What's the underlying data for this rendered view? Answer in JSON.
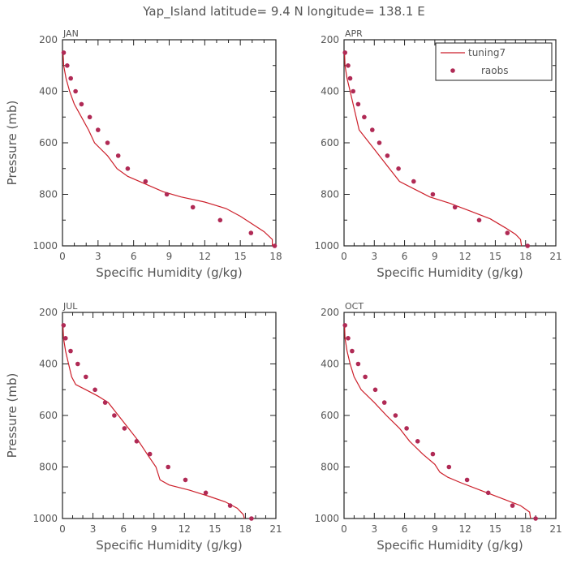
{
  "figure": {
    "title": "Yap_Island  latitude= 9.4 N longitude= 138.1 E"
  },
  "legend": {
    "model_label": "tuning7",
    "obs_label": "raobs",
    "colors": {
      "model": "#cc1f2a",
      "obs": "#b02a55"
    }
  },
  "chart_data": [
    {
      "type": "line",
      "panel": "JAN",
      "title": "JAN",
      "xlabel": "Specific Humidity (g/kg)",
      "ylabel": "Pressure (mb)",
      "xlim": [
        0,
        18
      ],
      "ylim": [
        1000,
        200
      ],
      "xticks": [
        0,
        3,
        6,
        9,
        12,
        15,
        18
      ],
      "yticks": [
        200,
        400,
        600,
        800,
        1000
      ],
      "legend": false,
      "series": [
        {
          "name": "tuning7",
          "style": "line",
          "points": [
            [
              0.05,
              250
            ],
            [
              0.1,
              300
            ],
            [
              0.3,
              350
            ],
            [
              0.6,
              400
            ],
            [
              1.0,
              450
            ],
            [
              1.6,
              500
            ],
            [
              2.2,
              550
            ],
            [
              2.7,
              600
            ],
            [
              3.8,
              650
            ],
            [
              4.6,
              700
            ],
            [
              5.5,
              730
            ],
            [
              7.0,
              760
            ],
            [
              8.5,
              790
            ],
            [
              10.0,
              810
            ],
            [
              12.0,
              830
            ],
            [
              13.8,
              855
            ],
            [
              15.0,
              885
            ],
            [
              16.0,
              915
            ],
            [
              17.0,
              945
            ],
            [
              17.7,
              975
            ],
            [
              17.7,
              1000
            ]
          ]
        },
        {
          "name": "raobs",
          "style": "marker",
          "points": [
            [
              0.1,
              250
            ],
            [
              0.4,
              300
            ],
            [
              0.7,
              350
            ],
            [
              1.1,
              400
            ],
            [
              1.6,
              450
            ],
            [
              2.3,
              500
            ],
            [
              3.0,
              550
            ],
            [
              3.8,
              600
            ],
            [
              4.7,
              650
            ],
            [
              5.5,
              700
            ],
            [
              7.0,
              750
            ],
            [
              8.8,
              800
            ],
            [
              11.0,
              850
            ],
            [
              13.3,
              900
            ],
            [
              15.9,
              950
            ],
            [
              17.9,
              1000
            ]
          ]
        }
      ]
    },
    {
      "type": "line",
      "panel": "APR",
      "title": "APR",
      "xlabel": "Specific Humidity (g/kg)",
      "ylabel": "",
      "xlim": [
        0,
        21
      ],
      "ylim": [
        1000,
        200
      ],
      "xticks": [
        0,
        3,
        6,
        9,
        12,
        15,
        18,
        21
      ],
      "yticks": [
        200,
        400,
        600,
        800,
        1000
      ],
      "legend": true,
      "legend_position": "top-right",
      "series": [
        {
          "name": "tuning7",
          "style": "line",
          "points": [
            [
              0.05,
              250
            ],
            [
              0.1,
              300
            ],
            [
              0.3,
              350
            ],
            [
              0.6,
              400
            ],
            [
              0.9,
              450
            ],
            [
              1.2,
              500
            ],
            [
              1.5,
              550
            ],
            [
              2.5,
              600
            ],
            [
              3.5,
              650
            ],
            [
              4.5,
              700
            ],
            [
              5.5,
              750
            ],
            [
              7.0,
              780
            ],
            [
              8.5,
              810
            ],
            [
              10.5,
              835
            ],
            [
              12.5,
              865
            ],
            [
              14.5,
              895
            ],
            [
              16.0,
              930
            ],
            [
              17.0,
              955
            ],
            [
              17.5,
              975
            ],
            [
              17.6,
              1000
            ]
          ]
        },
        {
          "name": "raobs",
          "style": "marker",
          "points": [
            [
              0.1,
              250
            ],
            [
              0.4,
              300
            ],
            [
              0.6,
              350
            ],
            [
              0.9,
              400
            ],
            [
              1.4,
              450
            ],
            [
              2.0,
              500
            ],
            [
              2.8,
              550
            ],
            [
              3.5,
              600
            ],
            [
              4.3,
              650
            ],
            [
              5.4,
              700
            ],
            [
              6.9,
              750
            ],
            [
              8.8,
              800
            ],
            [
              11.0,
              850
            ],
            [
              13.4,
              900
            ],
            [
              16.2,
              950
            ],
            [
              18.2,
              1000
            ]
          ]
        }
      ]
    },
    {
      "type": "line",
      "panel": "JUL",
      "title": "JUL",
      "xlabel": "Specific Humidity (g/kg)",
      "ylabel": "Pressure (mb)",
      "xlim": [
        0,
        21
      ],
      "ylim": [
        1000,
        200
      ],
      "xticks": [
        0,
        3,
        6,
        9,
        12,
        15,
        18,
        21
      ],
      "yticks": [
        200,
        400,
        600,
        800,
        1000
      ],
      "legend": false,
      "series": [
        {
          "name": "tuning7",
          "style": "line",
          "points": [
            [
              0.05,
              250
            ],
            [
              0.1,
              300
            ],
            [
              0.3,
              350
            ],
            [
              0.6,
              400
            ],
            [
              0.9,
              450
            ],
            [
              1.3,
              480
            ],
            [
              2.3,
              500
            ],
            [
              3.5,
              525
            ],
            [
              4.5,
              550
            ],
            [
              5.5,
              600
            ],
            [
              6.5,
              650
            ],
            [
              7.5,
              700
            ],
            [
              8.5,
              760
            ],
            [
              9.2,
              800
            ],
            [
              9.6,
              850
            ],
            [
              10.5,
              870
            ],
            [
              12.5,
              890
            ],
            [
              14.5,
              915
            ],
            [
              16.0,
              935
            ],
            [
              17.2,
              960
            ],
            [
              17.8,
              985
            ],
            [
              17.9,
              1000
            ]
          ]
        },
        {
          "name": "raobs",
          "style": "marker",
          "points": [
            [
              0.1,
              250
            ],
            [
              0.3,
              300
            ],
            [
              0.8,
              350
            ],
            [
              1.5,
              400
            ],
            [
              2.3,
              450
            ],
            [
              3.2,
              500
            ],
            [
              4.2,
              550
            ],
            [
              5.1,
              600
            ],
            [
              6.1,
              650
            ],
            [
              7.3,
              700
            ],
            [
              8.6,
              750
            ],
            [
              10.4,
              800
            ],
            [
              12.1,
              850
            ],
            [
              14.1,
              900
            ],
            [
              16.5,
              950
            ],
            [
              18.6,
              1000
            ]
          ]
        }
      ]
    },
    {
      "type": "line",
      "panel": "OCT",
      "title": "OCT",
      "xlabel": "Specific Humidity (g/kg)",
      "ylabel": "",
      "xlim": [
        0,
        21
      ],
      "ylim": [
        1000,
        200
      ],
      "xticks": [
        0,
        3,
        6,
        9,
        12,
        15,
        18,
        21
      ],
      "yticks": [
        200,
        400,
        600,
        800,
        1000
      ],
      "legend": false,
      "series": [
        {
          "name": "tuning7",
          "style": "line",
          "points": [
            [
              0.05,
              250
            ],
            [
              0.1,
              300
            ],
            [
              0.3,
              350
            ],
            [
              0.6,
              400
            ],
            [
              1.0,
              450
            ],
            [
              1.7,
              500
            ],
            [
              3.0,
              550
            ],
            [
              4.2,
              600
            ],
            [
              5.5,
              650
            ],
            [
              6.5,
              700
            ],
            [
              7.8,
              750
            ],
            [
              9.0,
              790
            ],
            [
              9.5,
              820
            ],
            [
              10.3,
              840
            ],
            [
              11.5,
              860
            ],
            [
              13.5,
              890
            ],
            [
              15.5,
              920
            ],
            [
              17.5,
              950
            ],
            [
              18.4,
              975
            ],
            [
              18.5,
              1000
            ]
          ]
        },
        {
          "name": "raobs",
          "style": "marker",
          "points": [
            [
              0.1,
              250
            ],
            [
              0.4,
              300
            ],
            [
              0.8,
              350
            ],
            [
              1.4,
              400
            ],
            [
              2.1,
              450
            ],
            [
              3.1,
              500
            ],
            [
              4.0,
              550
            ],
            [
              5.1,
              600
            ],
            [
              6.2,
              650
            ],
            [
              7.3,
              700
            ],
            [
              8.8,
              750
            ],
            [
              10.4,
              800
            ],
            [
              12.2,
              850
            ],
            [
              14.3,
              900
            ],
            [
              16.7,
              950
            ],
            [
              19.0,
              1000
            ]
          ]
        }
      ]
    }
  ]
}
